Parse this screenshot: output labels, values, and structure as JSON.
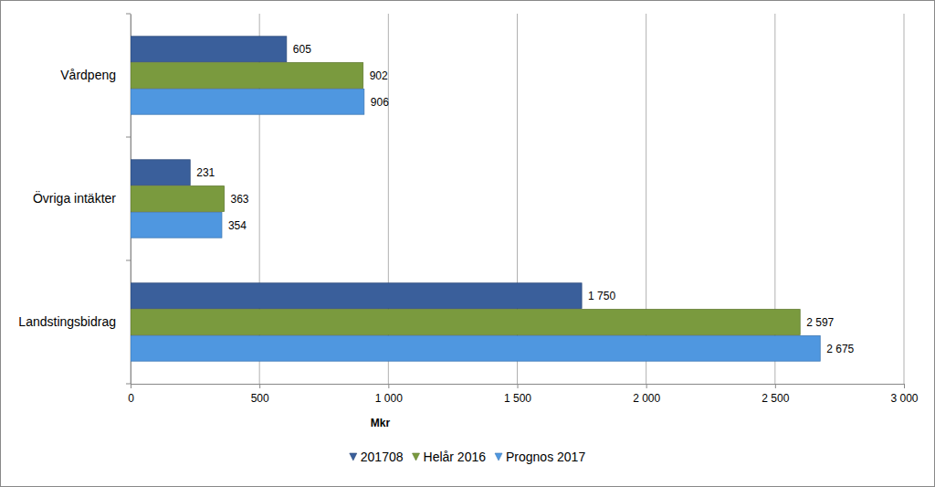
{
  "chart_data": {
    "type": "bar",
    "orientation": "horizontal",
    "categories": [
      "Vårdpeng",
      "Övriga intäkter",
      "Landstingsbidrag"
    ],
    "series": [
      {
        "name": "201708",
        "color": "#3a5f9b",
        "values": [
          605,
          231,
          1750
        ],
        "value_labels": [
          "605",
          "231",
          "1 750"
        ]
      },
      {
        "name": "Helår 2016",
        "color": "#7a9a3e",
        "values": [
          902,
          363,
          2597
        ],
        "value_labels": [
          "902",
          "363",
          "2 597"
        ]
      },
      {
        "name": "Prognos 2017",
        "color": "#4f97e0",
        "values": [
          906,
          354,
          2675
        ],
        "value_labels": [
          "906",
          "354",
          "2 675"
        ]
      }
    ],
    "x_label": "Mkr",
    "xlim": [
      0,
      3000
    ],
    "xticks": [
      0,
      500,
      {
        "value": 1000,
        "label": "1 000"
      },
      {
        "value": 1500,
        "label": "1 500"
      },
      {
        "value": 2000,
        "label": "2 000"
      },
      {
        "value": 2500,
        "label": "2 500"
      },
      {
        "value": 3000,
        "label": "3 000"
      }
    ],
    "grid": true,
    "legend": "bottom",
    "data_labels": true
  }
}
